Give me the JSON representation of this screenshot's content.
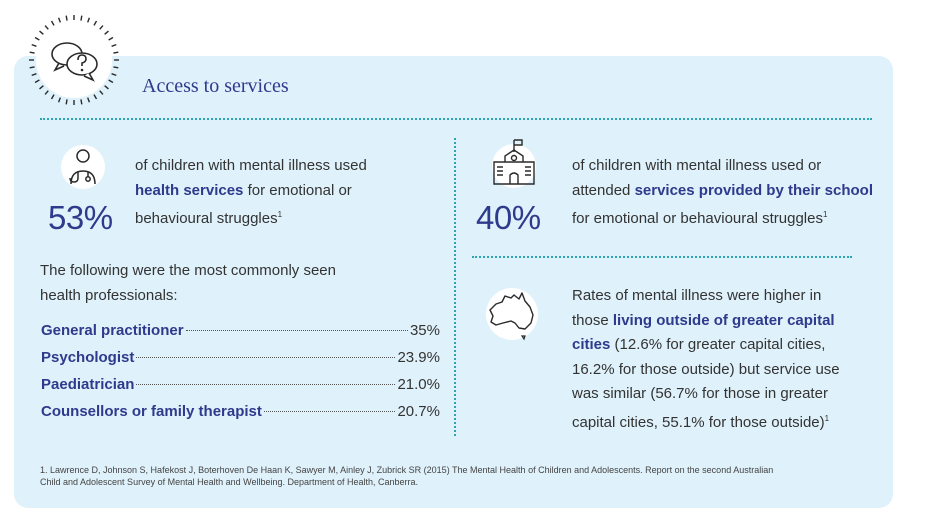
{
  "section": {
    "title": "Access to services"
  },
  "health": {
    "percent": "53%",
    "line1": "of children with mental illness used",
    "highlight": "health services",
    "line2_rest": " for emotional or",
    "line3": "behavioural struggles",
    "sup": "1"
  },
  "professionals": {
    "intro_line1": "The following were the most commonly seen",
    "intro_line2": "health professionals:",
    "items": [
      {
        "label": "General practitioner",
        "value": "35%"
      },
      {
        "label": "Psychologist",
        "value": "23.9%"
      },
      {
        "label": "Paediatrician",
        "value": "21.0%"
      },
      {
        "label": "Counsellors or family therapist",
        "value": "20.7%"
      }
    ]
  },
  "school": {
    "percent": "40%",
    "line1": "of children with mental illness used or",
    "line2_pre": "attended ",
    "highlight": "services provided by their school",
    "line3": "for emotional or behavioural struggles",
    "sup": "1"
  },
  "rural": {
    "line1": "Rates of mental illness were higher in",
    "line2_pre": "those ",
    "highlight_a": "living outside of greater capital",
    "highlight_b": "cities",
    "line3_rest": " (12.6% for greater capital cities,",
    "line4": "16.2% for those outside) but service use",
    "line5": "was similar (56.7% for those in greater",
    "line6": "capital cities, 55.1% for those outside)",
    "sup": "1"
  },
  "footnote": {
    "line1": "1. Lawrence D, Johnson S, Hafekost J, Boterhoven De Haan K, Sawyer M, Ainley J, Zubrick SR (2015) The Mental Health of Children and Adolescents. Report on the second Australian",
    "line2": "Child and Adolescent Survey of Mental Health and Wellbeing. Department of Health, Canberra."
  },
  "icons": [
    "question-bubbles-icon",
    "doctor-stethoscope-icon",
    "school-building-icon",
    "australia-map-icon"
  ],
  "colors": {
    "panel": "#dff1fa",
    "accent": "#2e3a8c",
    "divider": "#2aa6b3"
  }
}
